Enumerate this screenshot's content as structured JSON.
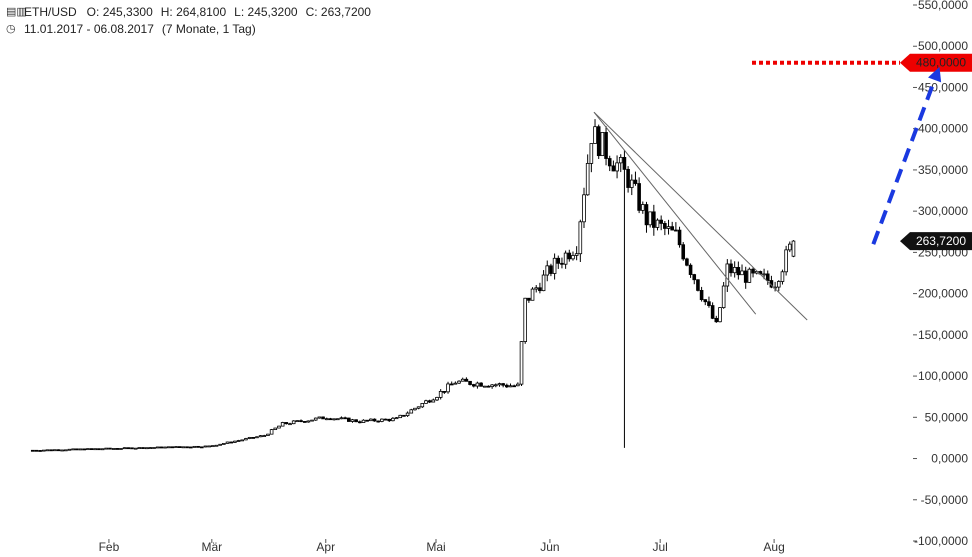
{
  "header": {
    "symbol": "ETH/USD",
    "open_label": "O:",
    "open": "245,3300",
    "high_label": "H:",
    "high": "264,8100",
    "low_label": "L:",
    "low": "245,3200",
    "close_label": "C:",
    "close": "263,7200",
    "range": "11.01.2017 - 06.08.2017",
    "period": "(7 Monate, 1 Tag)",
    "chart_icon": "candlestick-icon",
    "clock_icon": "clock-icon"
  },
  "chart_data": {
    "type": "candlestick",
    "ylim": [
      -100,
      550
    ],
    "yticks": [
      {
        "v": 550,
        "label": "550,0000"
      },
      {
        "v": 500,
        "label": "500,0000"
      },
      {
        "v": 450,
        "label": "450,0000"
      },
      {
        "v": 400,
        "label": "400,0000"
      },
      {
        "v": 350,
        "label": "350,0000"
      },
      {
        "v": 300,
        "label": "300,0000"
      },
      {
        "v": 250,
        "label": "250,0000"
      },
      {
        "v": 200,
        "label": "200,0000"
      },
      {
        "v": 150,
        "label": "150,0000"
      },
      {
        "v": 100,
        "label": "100,0000"
      },
      {
        "v": 50,
        "label": "50,0000"
      },
      {
        "v": 0,
        "label": "0,0000"
      },
      {
        "v": -50,
        "label": "-50,0000"
      },
      {
        "v": -100,
        "label": "-100,0000"
      }
    ],
    "xlim": [
      "2017-01-01",
      "2017-08-31"
    ],
    "xticks": [
      {
        "date": "2017-02-01",
        "label": "Feb"
      },
      {
        "date": "2017-03-01",
        "label": "Mär"
      },
      {
        "date": "2017-04-01",
        "label": "Apr"
      },
      {
        "date": "2017-05-01",
        "label": "Mai"
      },
      {
        "date": "2017-06-01",
        "label": "Jun"
      },
      {
        "date": "2017-07-01",
        "label": "Jul"
      },
      {
        "date": "2017-08-01",
        "label": "Aug"
      }
    ],
    "key_points": [
      {
        "date": "2017-01-11",
        "close": 10
      },
      {
        "date": "2017-02-28",
        "close": 15
      },
      {
        "date": "2017-03-15",
        "close": 28
      },
      {
        "date": "2017-03-20",
        "close": 42
      },
      {
        "date": "2017-04-01",
        "close": 50
      },
      {
        "date": "2017-04-10",
        "close": 45
      },
      {
        "date": "2017-04-20",
        "close": 48
      },
      {
        "date": "2017-05-01",
        "close": 77
      },
      {
        "date": "2017-05-06",
        "close": 93
      },
      {
        "date": "2017-05-23",
        "close": 88
      },
      {
        "date": "2017-05-25",
        "close": 190
      },
      {
        "date": "2017-06-01",
        "close": 230
      },
      {
        "date": "2017-06-08",
        "close": 260
      },
      {
        "date": "2017-06-12",
        "close": 395
      },
      {
        "date": "2017-06-22",
        "close": 340
      },
      {
        "date": "2017-06-27",
        "close": 290
      },
      {
        "date": "2017-07-05",
        "close": 270
      },
      {
        "date": "2017-07-16",
        "close": 160
      },
      {
        "date": "2017-07-19",
        "close": 230
      },
      {
        "date": "2017-07-25",
        "close": 220
      },
      {
        "date": "2017-08-01",
        "close": 215
      },
      {
        "date": "2017-08-06",
        "close": 263.72
      }
    ],
    "flash_crash": {
      "date": "2017-06-21",
      "low": 13
    },
    "trendlines": [
      {
        "from": {
          "date": "2017-06-13",
          "value": 420
        },
        "to": {
          "date": "2017-08-10",
          "value": 168
        }
      },
      {
        "from": {
          "date": "2017-06-13",
          "value": 420
        },
        "to": {
          "date": "2017-07-27",
          "value": 175
        }
      }
    ],
    "target": {
      "value": 480,
      "label": "480,0000",
      "color": "#ee0000"
    },
    "last_price": {
      "value": 263.72,
      "label": "263,7200"
    },
    "arrow": {
      "from": {
        "date": "2017-08-28",
        "value": 260
      },
      "to": {
        "date": "2017-09-15",
        "value": 475
      },
      "color": "#1a39e0"
    }
  }
}
